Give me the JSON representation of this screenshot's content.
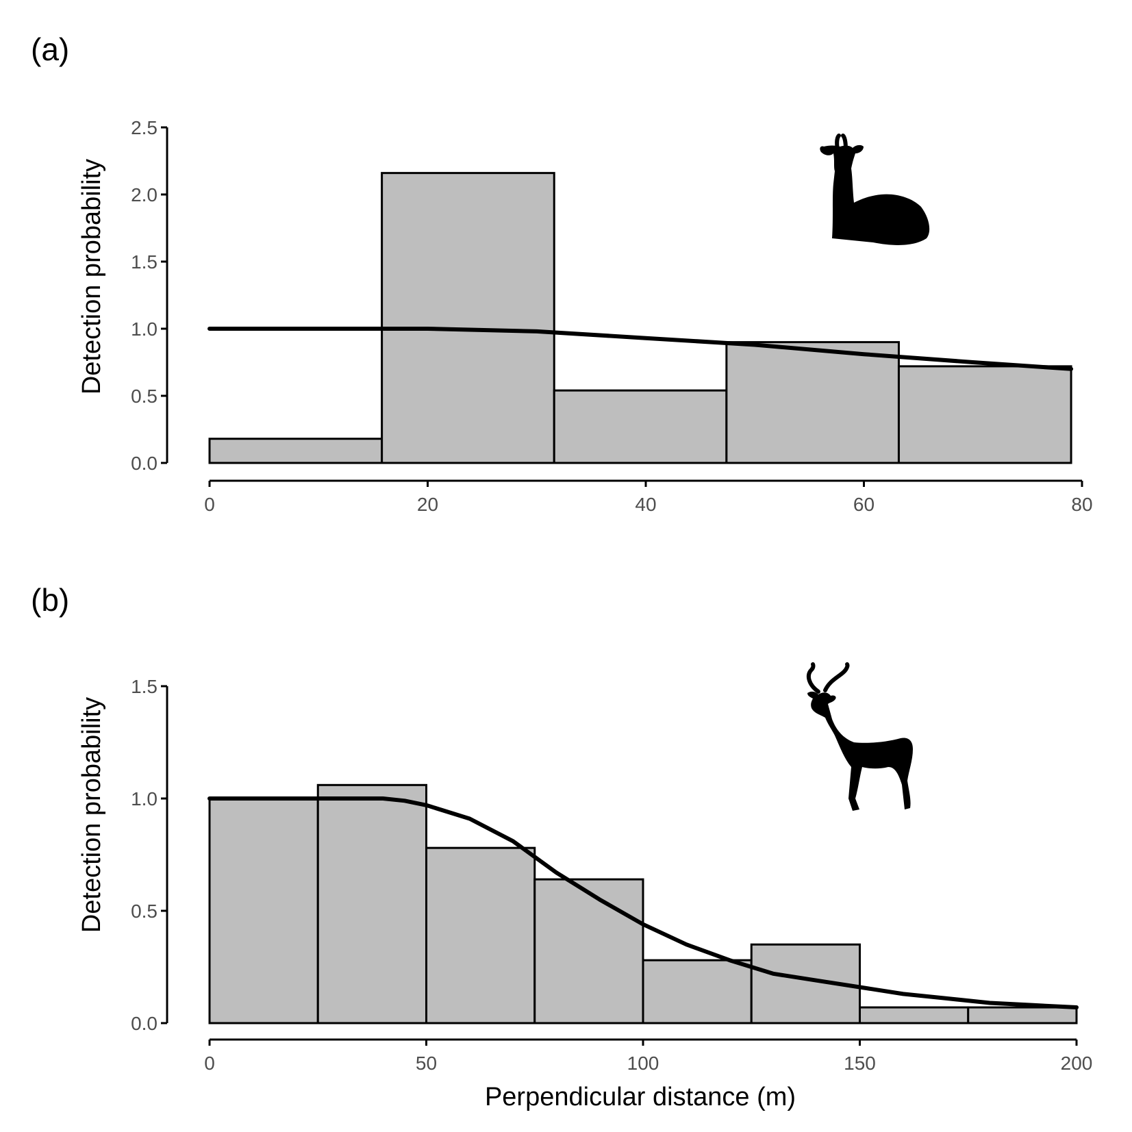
{
  "chart_data": [
    {
      "type": "bar",
      "panel_label": "(a)",
      "ylabel": "Detection probability",
      "xlabel": "",
      "xlim": [
        0,
        80
      ],
      "ylim": [
        0,
        2.5
      ],
      "x_ticks": [
        0,
        20,
        40,
        60,
        80
      ],
      "y_ticks": [
        "0.0",
        "0.5",
        "1.0",
        "1.5",
        "2.0",
        "2.5"
      ],
      "bins": [
        {
          "from": 0,
          "to": 15.8,
          "value": 0.18
        },
        {
          "from": 15.8,
          "to": 31.6,
          "value": 2.16
        },
        {
          "from": 31.6,
          "to": 47.4,
          "value": 0.54
        },
        {
          "from": 47.4,
          "to": 63.2,
          "value": 0.9
        },
        {
          "from": 63.2,
          "to": 79.0,
          "value": 0.72
        }
      ],
      "fitted_curve": {
        "x": [
          0,
          10,
          20,
          30,
          40,
          50,
          60,
          70,
          79
        ],
        "y": [
          1.0,
          1.0,
          1.0,
          0.98,
          0.93,
          0.88,
          0.81,
          0.75,
          0.7
        ]
      },
      "icon": "reclining-antelope-silhouette"
    },
    {
      "type": "bar",
      "panel_label": "(b)",
      "ylabel": "Detection probability",
      "xlabel": "Perpendicular distance (m)",
      "xlim": [
        0,
        200
      ],
      "ylim": [
        0,
        1.5
      ],
      "x_ticks": [
        0,
        50,
        100,
        150,
        200
      ],
      "y_ticks": [
        "0.0",
        "0.5",
        "1.0",
        "1.5"
      ],
      "bins": [
        {
          "from": 0,
          "to": 25,
          "value": 1.0
        },
        {
          "from": 25,
          "to": 50,
          "value": 1.06
        },
        {
          "from": 50,
          "to": 75,
          "value": 0.78
        },
        {
          "from": 75,
          "to": 100,
          "value": 0.64
        },
        {
          "from": 100,
          "to": 125,
          "value": 0.28
        },
        {
          "from": 125,
          "to": 150,
          "value": 0.35
        },
        {
          "from": 150,
          "to": 175,
          "value": 0.07
        },
        {
          "from": 175,
          "to": 200,
          "value": 0.07
        }
      ],
      "fitted_curve": {
        "x": [
          0,
          20,
          40,
          45,
          50,
          60,
          70,
          80,
          90,
          100,
          110,
          120,
          130,
          140,
          150,
          160,
          170,
          180,
          190,
          200
        ],
        "y": [
          1.0,
          1.0,
          1.0,
          0.99,
          0.97,
          0.91,
          0.81,
          0.67,
          0.55,
          0.44,
          0.35,
          0.28,
          0.22,
          0.19,
          0.16,
          0.13,
          0.11,
          0.09,
          0.08,
          0.07
        ]
      },
      "icon": "standing-impala-silhouette"
    }
  ]
}
